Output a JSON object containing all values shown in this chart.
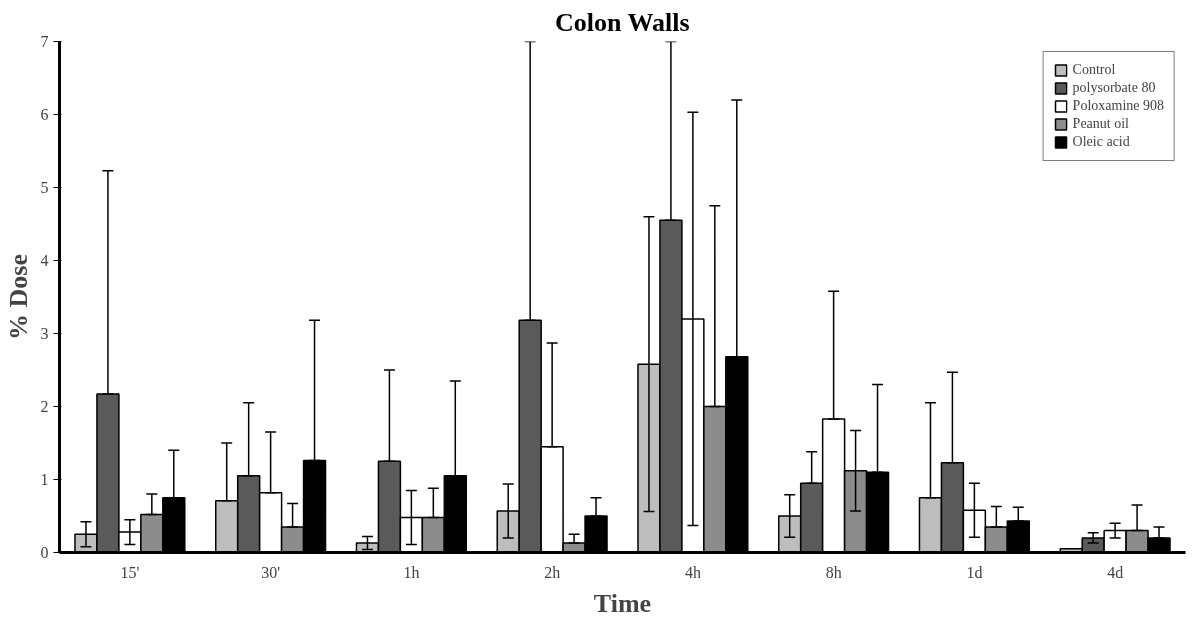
{
  "chart_data": {
    "type": "bar",
    "title": "Colon Walls",
    "xlabel": "Time",
    "ylabel": "% Dose",
    "categories": [
      "15'",
      "30'",
      "1h",
      "2h",
      "4h",
      "8h",
      "1d",
      "4d"
    ],
    "ylim": [
      0,
      7
    ],
    "yticks": [
      0,
      1,
      2,
      3,
      4,
      5,
      6,
      7
    ],
    "grid": false,
    "legend": "top right",
    "series": [
      {
        "name": "Control",
        "color": "#bdbdbd",
        "values": [
          0.25,
          0.71,
          0.13,
          0.57,
          2.58,
          0.5,
          0.75,
          0.05
        ],
        "errors": [
          0.17,
          [
            0.71,
            1.5
          ],
          0.09,
          0.37,
          2.02,
          0.29,
          [
            0.75,
            2.05
          ],
          null
        ]
      },
      {
        "name": "polysorbate 80",
        "color": "#5a5a5a",
        "values": [
          2.17,
          1.05,
          1.25,
          3.18,
          4.55,
          0.95,
          1.23,
          0.2
        ],
        "errors": [
          [
            2.17,
            5.23
          ],
          [
            1.05,
            2.05
          ],
          [
            1.25,
            2.5
          ],
          [
            3.18,
            7
          ],
          [
            4.55,
            7
          ],
          [
            0.95,
            1.38
          ],
          [
            1.23,
            2.47
          ],
          0.07
        ]
      },
      {
        "name": "Poloxamine 908",
        "color": "#ffffff",
        "values": [
          0.28,
          0.82,
          0.48,
          1.45,
          3.2,
          1.83,
          0.58,
          0.3
        ],
        "errors": [
          0.17,
          [
            0.82,
            1.65
          ],
          0.37,
          [
            1.45,
            2.87
          ],
          2.83,
          [
            1.83,
            3.58
          ],
          0.37,
          0.1
        ]
      },
      {
        "name": "Peanut oil",
        "color": "#8c8c8c",
        "values": [
          0.52,
          0.35,
          0.48,
          0.13,
          2.0,
          1.12,
          0.35,
          0.3
        ],
        "errors": [
          [
            0.52,
            0.8
          ],
          [
            0.35,
            0.67
          ],
          [
            0.48,
            0.88
          ],
          [
            0.13,
            0.25
          ],
          [
            2.0,
            4.75
          ],
          0.55,
          [
            0.35,
            0.63
          ],
          [
            0.3,
            0.65
          ]
        ]
      },
      {
        "name": "Oleic acid",
        "color": "#000000",
        "values": [
          0.75,
          1.26,
          1.05,
          0.5,
          2.68,
          1.1,
          0.43,
          0.2
        ],
        "errors": [
          [
            0.75,
            1.4
          ],
          [
            1.26,
            3.18
          ],
          [
            1.05,
            2.35
          ],
          [
            0.5,
            0.75
          ],
          [
            2.68,
            6.2
          ],
          [
            1.1,
            2.3
          ],
          [
            0.43,
            0.62
          ],
          [
            0.2,
            0.35
          ]
        ]
      }
    ]
  }
}
